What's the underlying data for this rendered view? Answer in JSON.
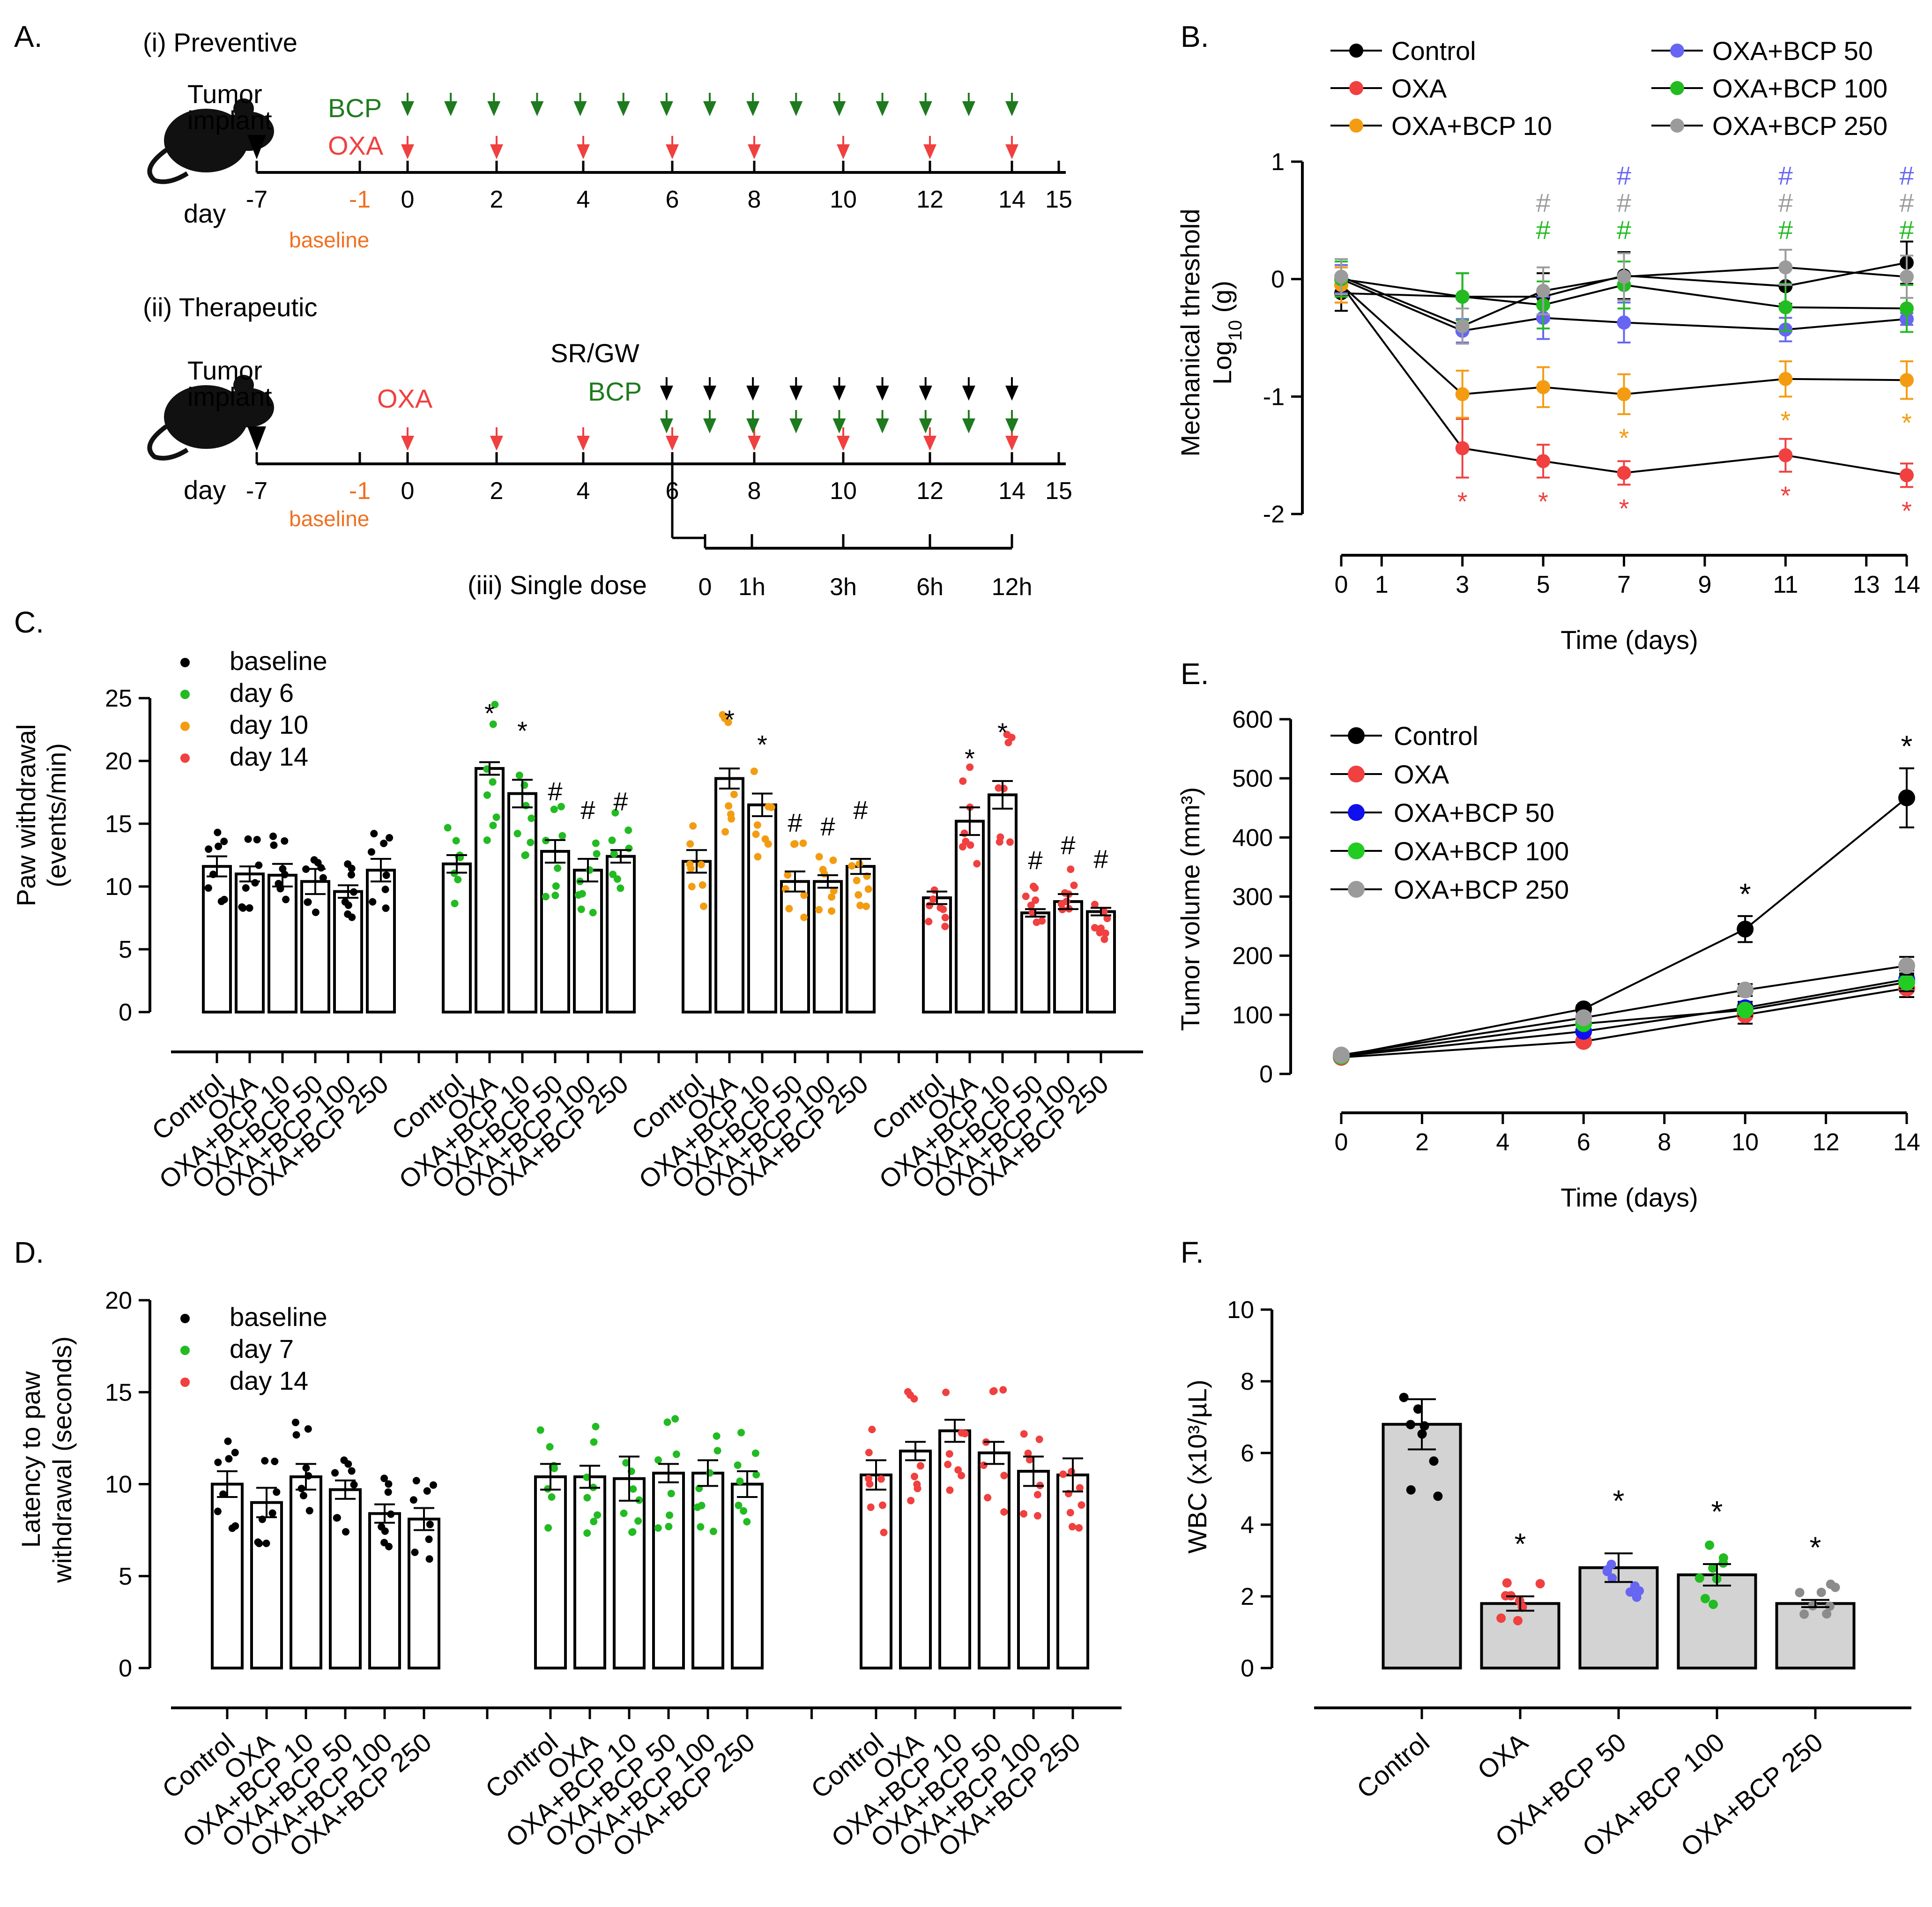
{
  "panels": {
    "A": {
      "label": "A.",
      "preventive_title": "(i) Preventive",
      "therapeutic_title": "(ii) Therapeutic",
      "single_dose_title": "(iii) Single dose",
      "tumor_implant_l1": "Tumor",
      "tumor_implant_l2": "implant",
      "day_label": "day",
      "baseline_label": "baseline",
      "bcp_label": "BCP",
      "oxa_label": "OXA",
      "srgw_label": "SR/GW",
      "timeline_days": [
        "-7",
        "-1",
        "0",
        "2",
        "4",
        "6",
        "8",
        "10",
        "12",
        "14",
        "15"
      ],
      "single_dose_times": [
        "0",
        "1h",
        "3h",
        "6h",
        "12h"
      ],
      "colors": {
        "bcp": "#1e7a1e",
        "oxa": "#f04040",
        "baseline": "#f07020",
        "black": "#000000"
      }
    },
    "B": {
      "label": "B."
    },
    "C": {
      "label": "C."
    },
    "D": {
      "label": "D."
    },
    "E": {
      "label": "E."
    },
    "F": {
      "label": "F."
    }
  },
  "chart_data": [
    {
      "id": "B",
      "type": "line",
      "xlabel": "Time (days)",
      "ylabel_l1": "Mechanical threshold",
      "ylabel_l2": "Log10 (g)",
      "xlim": [
        0,
        14
      ],
      "ylim": [
        -2,
        1
      ],
      "xticks": [
        0,
        1,
        3,
        5,
        7,
        9,
        11,
        13,
        14
      ],
      "yticks": [
        1,
        0,
        -1,
        -2
      ],
      "x": [
        0,
        3,
        5,
        7,
        11,
        14
      ],
      "series": [
        {
          "name": "Control",
          "color": "#000000",
          "values": [
            -0.12,
            -0.15,
            -0.15,
            0.03,
            -0.06,
            0.14
          ],
          "err": [
            0.15,
            0.2,
            0.2,
            0.2,
            0.15,
            0.18
          ]
        },
        {
          "name": "OXA",
          "color": "#f04040",
          "values": [
            -0.05,
            -1.44,
            -1.55,
            -1.65,
            -1.5,
            -1.67
          ],
          "err": [
            0.15,
            0.25,
            0.14,
            0.1,
            0.14,
            0.1
          ]
        },
        {
          "name": "OXA+BCP 10",
          "color": "#f39c12",
          "values": [
            -0.05,
            -0.98,
            -0.92,
            -0.98,
            -0.85,
            -0.86
          ],
          "err": [
            0.15,
            0.2,
            0.17,
            0.17,
            0.15,
            0.16
          ]
        },
        {
          "name": "OXA+BCP 50",
          "color": "#6666f2",
          "values": [
            0,
            -0.44,
            -0.33,
            -0.37,
            -0.43,
            -0.34
          ],
          "err": [
            0.12,
            0.1,
            0.18,
            0.17,
            0.1,
            0.05
          ]
        },
        {
          "name": "OXA+BCP 100",
          "color": "#22bb22",
          "values": [
            0,
            -0.15,
            -0.22,
            -0.05,
            -0.24,
            -0.25
          ],
          "err": [
            0.15,
            0.2,
            0.2,
            0.2,
            0.2,
            0.2
          ]
        },
        {
          "name": "OXA+BCP 250",
          "color": "#9b9b9b",
          "values": [
            0.02,
            -0.4,
            -0.1,
            0.02,
            0.1,
            0.02
          ],
          "err": [
            0.15,
            0.15,
            0.2,
            0.2,
            0.15,
            0.18
          ]
        }
      ],
      "annotations": [
        {
          "x": 3,
          "text": "*",
          "color": "#f04040"
        },
        {
          "x": 5,
          "text": "*",
          "color": "#f04040"
        },
        {
          "x": 7,
          "text": "*",
          "color": "#f04040"
        },
        {
          "x": 11,
          "text": "*",
          "color": "#f04040"
        },
        {
          "x": 14,
          "text": "*",
          "color": "#f04040"
        },
        {
          "x": 7,
          "text": "*",
          "color": "#f39c12"
        },
        {
          "x": 11,
          "text": "*",
          "color": "#f39c12"
        },
        {
          "x": 14,
          "text": "*",
          "color": "#f39c12"
        },
        {
          "x": 5,
          "text": "#",
          "color": "#9b9b9b"
        },
        {
          "x": 5,
          "text": "#",
          "color": "#22bb22"
        },
        {
          "x": 7,
          "text": "#",
          "color": "#6666f2"
        },
        {
          "x": 7,
          "text": "#",
          "color": "#9b9b9b"
        },
        {
          "x": 7,
          "text": "#",
          "color": "#22bb22"
        },
        {
          "x": 11,
          "text": "#",
          "color": "#6666f2"
        },
        {
          "x": 11,
          "text": "#",
          "color": "#9b9b9b"
        },
        {
          "x": 11,
          "text": "#",
          "color": "#22bb22"
        },
        {
          "x": 14,
          "text": "#",
          "color": "#6666f2"
        },
        {
          "x": 14,
          "text": "#",
          "color": "#9b9b9b"
        },
        {
          "x": 14,
          "text": "#",
          "color": "#22bb22"
        }
      ]
    },
    {
      "id": "C",
      "type": "bar",
      "ylabel_l1": "Paw withdrawal",
      "ylabel_l2": "(events/min)",
      "ylim": [
        0,
        25
      ],
      "yticks": [
        0,
        5,
        10,
        15,
        20,
        25
      ],
      "categories": [
        "Control",
        "OXA",
        "OXA+BCP 10",
        "OXA+BCP 50",
        "OXA+BCP 100",
        "OXA+BCP 250"
      ],
      "legend": [
        {
          "name": "baseline",
          "color": "#000000"
        },
        {
          "name": "day 6",
          "color": "#22bb22"
        },
        {
          "name": "day 10",
          "color": "#f39c12"
        },
        {
          "name": "day 14",
          "color": "#f04040"
        }
      ],
      "groups": [
        {
          "name": "baseline",
          "color": "#000000",
          "values": [
            11.6,
            11.0,
            10.9,
            10.4,
            9.6,
            11.3
          ],
          "err": [
            0.8,
            0.6,
            0.9,
            1.0,
            0.5,
            0.9
          ],
          "marks": [
            "",
            "",
            "",
            "",
            "",
            ""
          ]
        },
        {
          "name": "day 6",
          "color": "#22bb22",
          "values": [
            11.8,
            19.4,
            17.4,
            12.8,
            11.3,
            12.4
          ],
          "err": [
            0.7,
            0.5,
            1.1,
            0.9,
            0.9,
            0.5
          ],
          "marks": [
            "",
            "*",
            "*",
            "#",
            "#",
            "#"
          ]
        },
        {
          "name": "day 10",
          "color": "#f39c12",
          "values": [
            12.0,
            18.6,
            16.5,
            10.4,
            10.4,
            11.6
          ],
          "err": [
            0.9,
            0.8,
            0.9,
            0.8,
            0.5,
            0.6
          ],
          "marks": [
            "",
            "*",
            "*",
            "#",
            "#",
            "#"
          ]
        },
        {
          "name": "day 14",
          "color": "#f04040",
          "values": [
            9.1,
            15.2,
            17.3,
            7.9,
            8.8,
            8.0
          ],
          "err": [
            0.5,
            1.1,
            1.1,
            0.3,
            0.6,
            0.3
          ],
          "marks": [
            "",
            "*",
            "*",
            "#",
            "#",
            "#"
          ]
        }
      ]
    },
    {
      "id": "D",
      "type": "bar",
      "ylabel_l1": "Latency to paw",
      "ylabel_l2": "withdrawal (seconds)",
      "ylim": [
        0,
        20
      ],
      "yticks": [
        0,
        5,
        10,
        15,
        20
      ],
      "categories": [
        "Control",
        "OXA",
        "OXA+BCP 10",
        "OXA+BCP 50",
        "OXA+BCP 100",
        "OXA+BCP 250"
      ],
      "legend": [
        {
          "name": "baseline",
          "color": "#000000"
        },
        {
          "name": "day 7",
          "color": "#22bb22"
        },
        {
          "name": "day 14",
          "color": "#f04040"
        }
      ],
      "groups": [
        {
          "name": "baseline",
          "color": "#000000",
          "values": [
            10.0,
            9.0,
            10.4,
            9.7,
            8.4,
            8.1
          ],
          "err": [
            0.7,
            0.8,
            0.7,
            0.5,
            0.5,
            0.6
          ]
        },
        {
          "name": "day 7",
          "color": "#22bb22",
          "values": [
            10.4,
            10.4,
            10.3,
            10.6,
            10.6,
            10.0
          ],
          "err": [
            0.7,
            0.6,
            1.2,
            0.5,
            0.7,
            0.7
          ]
        },
        {
          "name": "day 14",
          "color": "#f04040",
          "values": [
            10.5,
            11.8,
            12.9,
            11.7,
            10.7,
            10.5
          ],
          "err": [
            0.8,
            0.5,
            0.6,
            0.6,
            0.8,
            0.9
          ]
        }
      ]
    },
    {
      "id": "E",
      "type": "line",
      "xlabel": "Time (days)",
      "ylabel": "Tumor volume (mm³)",
      "xlim": [
        0,
        14
      ],
      "ylim": [
        0,
        600
      ],
      "xticks": [
        0,
        2,
        4,
        6,
        8,
        10,
        12,
        14
      ],
      "yticks": [
        0,
        100,
        200,
        300,
        400,
        500,
        600
      ],
      "x": [
        0,
        6,
        10,
        14
      ],
      "series": [
        {
          "name": "Control",
          "color": "#000000",
          "values": [
            30,
            110,
            245,
            467
          ],
          "err": [
            4,
            6,
            22,
            50
          ]
        },
        {
          "name": "OXA",
          "color": "#f04040",
          "values": [
            28,
            55,
            100,
            145
          ],
          "err": [
            3,
            5,
            15,
            15
          ]
        },
        {
          "name": "OXA+BCP 50",
          "color": "#1010ee",
          "values": [
            30,
            72,
            112,
            160
          ],
          "err": [
            3,
            5,
            10,
            15
          ]
        },
        {
          "name": "OXA+BCP 100",
          "color": "#22cc22",
          "values": [
            30,
            85,
            108,
            155
          ],
          "err": [
            3,
            5,
            10,
            15
          ]
        },
        {
          "name": "OXA+BCP 250",
          "color": "#9b9b9b",
          "values": [
            32,
            95,
            142,
            183
          ],
          "err": [
            3,
            6,
            10,
            15
          ]
        }
      ],
      "annotations": [
        {
          "x": 10,
          "y": 245,
          "text": "*"
        },
        {
          "x": 14,
          "y": 467,
          "text": "*"
        }
      ]
    },
    {
      "id": "F",
      "type": "bar",
      "ylabel": "WBC (x10³/µL)",
      "ylim": [
        0,
        10
      ],
      "yticks": [
        0,
        2,
        4,
        6,
        8,
        10
      ],
      "categories": [
        "Control",
        "OXA",
        "OXA+BCP 50",
        "OXA+BCP 100",
        "OXA+BCP 250"
      ],
      "colors": [
        "#000000",
        "#f04040",
        "#6666f2",
        "#22bb22",
        "#8b8b8b"
      ],
      "values": [
        6.8,
        1.8,
        2.8,
        2.6,
        1.8
      ],
      "err": [
        0.7,
        0.2,
        0.4,
        0.3,
        0.1
      ],
      "marks": [
        "",
        "*",
        "*",
        "*",
        "*"
      ]
    }
  ]
}
